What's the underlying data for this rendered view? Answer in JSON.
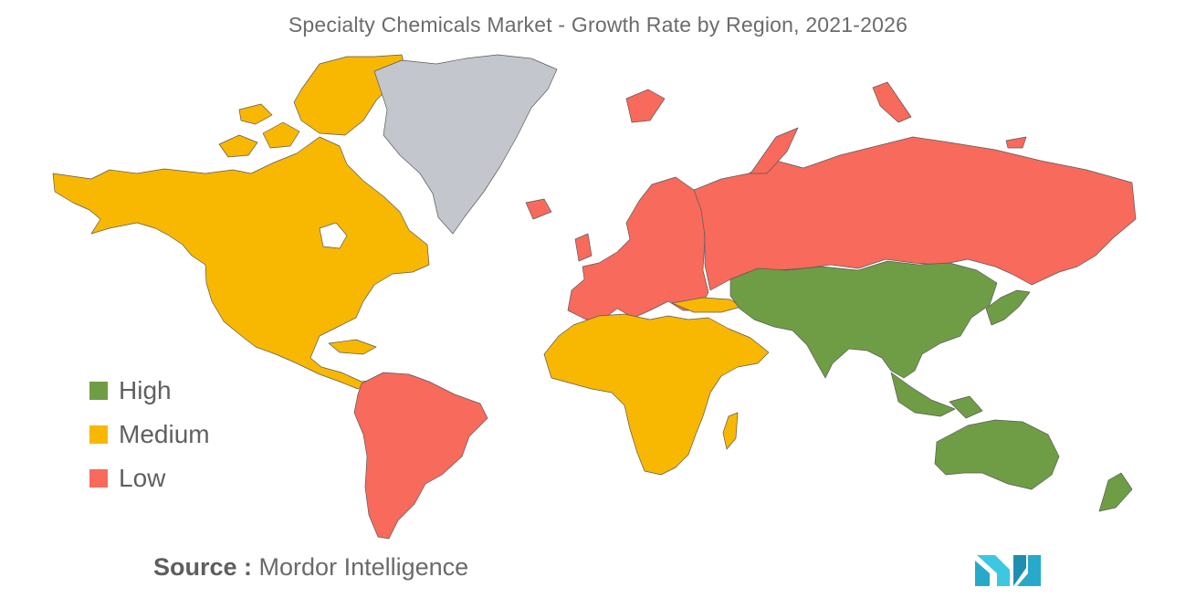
{
  "title": "Specialty Chemicals Market - Growth Rate by Region, 2021-2026",
  "legend": [
    {
      "label": "High",
      "color": "#6f9d45"
    },
    {
      "label": "Medium",
      "color": "#f8b700"
    },
    {
      "label": "Low",
      "color": "#f76a5c"
    }
  ],
  "no_data_color": "#c3c6cc",
  "regions": [
    {
      "name": "North America",
      "level": "Medium"
    },
    {
      "name": "Greenland",
      "level": "No data"
    },
    {
      "name": "South America",
      "level": "Low"
    },
    {
      "name": "Europe",
      "level": "Low"
    },
    {
      "name": "Russia",
      "level": "Low"
    },
    {
      "name": "Middle East & Africa",
      "level": "Medium"
    },
    {
      "name": "Asia-Pacific",
      "level": "High"
    }
  ],
  "source": {
    "prefix": "Source :",
    "name": "Mordor Intelligence"
  },
  "logo": {
    "name": "mordor-intelligence-logo"
  }
}
